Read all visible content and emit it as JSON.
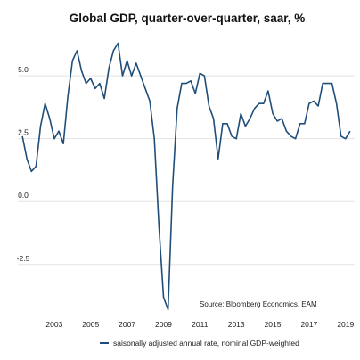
{
  "chart_data": {
    "type": "line",
    "title": "Global GDP, quarter-over-quarter, saar, %",
    "xlabel": "",
    "ylabel": "",
    "source": "Source: Bloomberg Economics, EAM",
    "xlim": [
      2001.0,
      2019.5
    ],
    "ylim": [
      -4.6,
      6.6
    ],
    "yticks": [
      -2.5,
      0.0,
      2.5,
      5.0
    ],
    "ytick_labels": [
      "-2.5",
      "0.0",
      "2.5",
      "5.0"
    ],
    "xticks": [
      2003,
      2005,
      2007,
      2009,
      2011,
      2013,
      2015,
      2017,
      2019
    ],
    "xtick_labels": [
      "2003",
      "2005",
      "2007",
      "2009",
      "2011",
      "2013",
      "2015",
      "2017",
      "2019"
    ],
    "grid": true,
    "legend_position": "bottom",
    "line_color": "#1f4e79",
    "series": [
      {
        "name": "saisonally adjusted annual rate, nominal GDP-weighted",
        "x": [
          2001.25,
          2001.5,
          2001.75,
          2002.0,
          2002.25,
          2002.5,
          2002.75,
          2003.0,
          2003.25,
          2003.5,
          2003.75,
          2004.0,
          2004.25,
          2004.5,
          2004.75,
          2005.0,
          2005.25,
          2005.5,
          2005.75,
          2006.0,
          2006.25,
          2006.5,
          2006.75,
          2007.0,
          2007.25,
          2007.5,
          2007.75,
          2008.0,
          2008.25,
          2008.5,
          2008.75,
          2009.0,
          2009.25,
          2009.5,
          2009.75,
          2010.0,
          2010.25,
          2010.5,
          2010.75,
          2011.0,
          2011.25,
          2011.5,
          2011.75,
          2012.0,
          2012.25,
          2012.5,
          2012.75,
          2013.0,
          2013.25,
          2013.5,
          2013.75,
          2014.0,
          2014.25,
          2014.5,
          2014.75,
          2015.0,
          2015.25,
          2015.5,
          2015.75,
          2016.0,
          2016.25,
          2016.5,
          2016.75,
          2017.0,
          2017.25,
          2017.5,
          2017.75,
          2018.0,
          2018.25,
          2018.5,
          2018.75,
          2019.0,
          2019.25
        ],
        "values": [
          2.6,
          1.7,
          1.2,
          1.4,
          3.0,
          3.9,
          3.3,
          2.5,
          2.8,
          2.3,
          4.2,
          5.6,
          6.0,
          5.2,
          4.7,
          4.9,
          4.5,
          4.7,
          4.1,
          5.3,
          6.0,
          6.3,
          5.0,
          5.6,
          5.0,
          5.5,
          5.0,
          4.5,
          4.0,
          2.5,
          -1.0,
          -3.8,
          -4.3,
          0.6,
          3.7,
          4.7,
          4.7,
          4.8,
          4.3,
          5.1,
          5.0,
          3.8,
          3.3,
          1.7,
          3.1,
          3.1,
          2.6,
          2.5,
          3.5,
          3.0,
          3.3,
          3.7,
          3.9,
          3.9,
          4.4,
          3.5,
          3.2,
          3.3,
          2.8,
          2.6,
          2.5,
          3.1,
          3.1,
          3.9,
          4.0,
          3.8,
          4.7,
          4.7,
          4.7,
          3.9,
          2.6,
          2.5,
          2.8
        ]
      }
    ]
  }
}
